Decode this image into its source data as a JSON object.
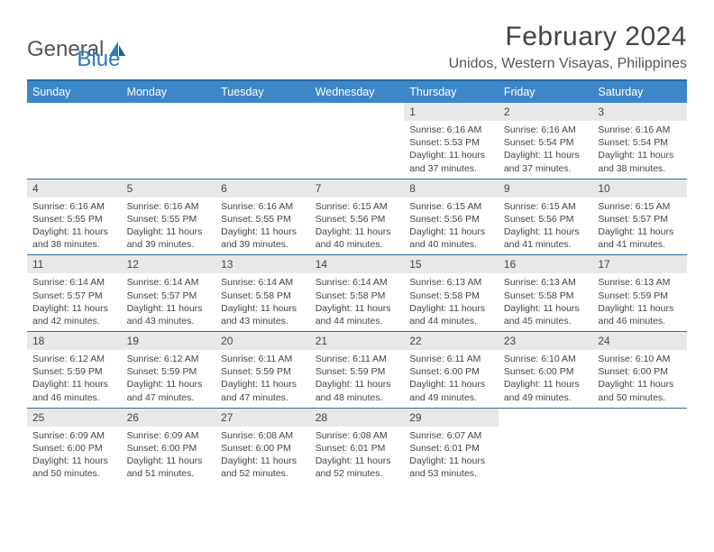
{
  "logo": {
    "text_general": "General",
    "text_blue": "Blue"
  },
  "title": "February 2024",
  "location": "Unidos, Western Visayas, Philippines",
  "weekday_headers": [
    "Sunday",
    "Monday",
    "Tuesday",
    "Wednesday",
    "Thursday",
    "Friday",
    "Saturday"
  ],
  "colors": {
    "header_bg": "#3b87c8",
    "header_border": "#2a6aa3",
    "daynum_bg": "#e8e8e8",
    "text": "#444444",
    "logo_blue": "#2b7bbf"
  },
  "fonts": {
    "title_size_pt": 22,
    "location_size_pt": 12,
    "header_size_pt": 9,
    "body_size_pt": 8
  },
  "skip_cells": 4,
  "days": [
    {
      "n": "1",
      "sunrise": "6:16 AM",
      "sunset": "5:53 PM",
      "daylight": "11 hours and 37 minutes."
    },
    {
      "n": "2",
      "sunrise": "6:16 AM",
      "sunset": "5:54 PM",
      "daylight": "11 hours and 37 minutes."
    },
    {
      "n": "3",
      "sunrise": "6:16 AM",
      "sunset": "5:54 PM",
      "daylight": "11 hours and 38 minutes."
    },
    {
      "n": "4",
      "sunrise": "6:16 AM",
      "sunset": "5:55 PM",
      "daylight": "11 hours and 38 minutes."
    },
    {
      "n": "5",
      "sunrise": "6:16 AM",
      "sunset": "5:55 PM",
      "daylight": "11 hours and 39 minutes."
    },
    {
      "n": "6",
      "sunrise": "6:16 AM",
      "sunset": "5:55 PM",
      "daylight": "11 hours and 39 minutes."
    },
    {
      "n": "7",
      "sunrise": "6:15 AM",
      "sunset": "5:56 PM",
      "daylight": "11 hours and 40 minutes."
    },
    {
      "n": "8",
      "sunrise": "6:15 AM",
      "sunset": "5:56 PM",
      "daylight": "11 hours and 40 minutes."
    },
    {
      "n": "9",
      "sunrise": "6:15 AM",
      "sunset": "5:56 PM",
      "daylight": "11 hours and 41 minutes."
    },
    {
      "n": "10",
      "sunrise": "6:15 AM",
      "sunset": "5:57 PM",
      "daylight": "11 hours and 41 minutes."
    },
    {
      "n": "11",
      "sunrise": "6:14 AM",
      "sunset": "5:57 PM",
      "daylight": "11 hours and 42 minutes."
    },
    {
      "n": "12",
      "sunrise": "6:14 AM",
      "sunset": "5:57 PM",
      "daylight": "11 hours and 43 minutes."
    },
    {
      "n": "13",
      "sunrise": "6:14 AM",
      "sunset": "5:58 PM",
      "daylight": "11 hours and 43 minutes."
    },
    {
      "n": "14",
      "sunrise": "6:14 AM",
      "sunset": "5:58 PM",
      "daylight": "11 hours and 44 minutes."
    },
    {
      "n": "15",
      "sunrise": "6:13 AM",
      "sunset": "5:58 PM",
      "daylight": "11 hours and 44 minutes."
    },
    {
      "n": "16",
      "sunrise": "6:13 AM",
      "sunset": "5:58 PM",
      "daylight": "11 hours and 45 minutes."
    },
    {
      "n": "17",
      "sunrise": "6:13 AM",
      "sunset": "5:59 PM",
      "daylight": "11 hours and 46 minutes."
    },
    {
      "n": "18",
      "sunrise": "6:12 AM",
      "sunset": "5:59 PM",
      "daylight": "11 hours and 46 minutes."
    },
    {
      "n": "19",
      "sunrise": "6:12 AM",
      "sunset": "5:59 PM",
      "daylight": "11 hours and 47 minutes."
    },
    {
      "n": "20",
      "sunrise": "6:11 AM",
      "sunset": "5:59 PM",
      "daylight": "11 hours and 47 minutes."
    },
    {
      "n": "21",
      "sunrise": "6:11 AM",
      "sunset": "5:59 PM",
      "daylight": "11 hours and 48 minutes."
    },
    {
      "n": "22",
      "sunrise": "6:11 AM",
      "sunset": "6:00 PM",
      "daylight": "11 hours and 49 minutes."
    },
    {
      "n": "23",
      "sunrise": "6:10 AM",
      "sunset": "6:00 PM",
      "daylight": "11 hours and 49 minutes."
    },
    {
      "n": "24",
      "sunrise": "6:10 AM",
      "sunset": "6:00 PM",
      "daylight": "11 hours and 50 minutes."
    },
    {
      "n": "25",
      "sunrise": "6:09 AM",
      "sunset": "6:00 PM",
      "daylight": "11 hours and 50 minutes."
    },
    {
      "n": "26",
      "sunrise": "6:09 AM",
      "sunset": "6:00 PM",
      "daylight": "11 hours and 51 minutes."
    },
    {
      "n": "27",
      "sunrise": "6:08 AM",
      "sunset": "6:00 PM",
      "daylight": "11 hours and 52 minutes."
    },
    {
      "n": "28",
      "sunrise": "6:08 AM",
      "sunset": "6:01 PM",
      "daylight": "11 hours and 52 minutes."
    },
    {
      "n": "29",
      "sunrise": "6:07 AM",
      "sunset": "6:01 PM",
      "daylight": "11 hours and 53 minutes."
    }
  ],
  "labels": {
    "sunrise_prefix": "Sunrise: ",
    "sunset_prefix": "Sunset: ",
    "daylight_prefix": "Daylight: "
  }
}
